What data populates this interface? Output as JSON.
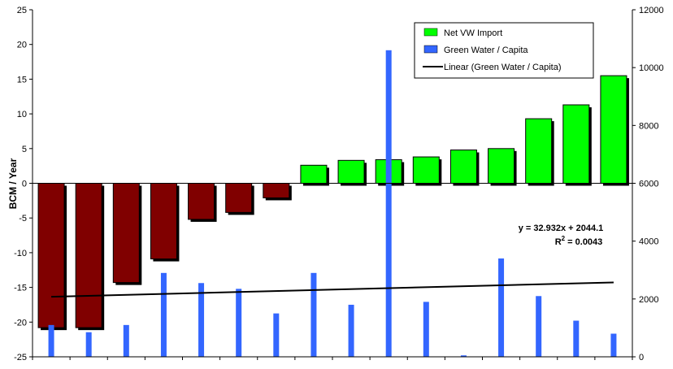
{
  "chart_data": {
    "type": "bar",
    "ylabel": "BCM / Year",
    "y_left_range": [
      -25,
      25
    ],
    "y_left_ticks": [
      25,
      20,
      15,
      10,
      5,
      0,
      -5,
      -10,
      -15,
      -20,
      -25
    ],
    "y_right_range": [
      0,
      12000
    ],
    "y_right_ticks": [
      12000,
      10000,
      8000,
      6000,
      4000,
      2000,
      0
    ],
    "bar_count": 16,
    "series": [
      {
        "name": "Net VW Import",
        "axis": "left",
        "color_negative": "#800000",
        "color_positive": "#00ff00",
        "values": [
          -20.8,
          -20.8,
          -14.3,
          -10.9,
          -5.2,
          -4.2,
          -2.1,
          2.6,
          3.3,
          3.4,
          3.8,
          4.8,
          5.0,
          9.3,
          11.3,
          15.5
        ]
      },
      {
        "name": "Green Water / Capita",
        "axis": "right",
        "color": "#3366ff",
        "values": [
          1100,
          850,
          1100,
          2900,
          2550,
          2350,
          1500,
          2900,
          1800,
          10600,
          1900,
          50,
          3400,
          2100,
          1250,
          800
        ]
      }
    ],
    "trendline": {
      "name": "Linear (Green Water / Capita)",
      "axis": "right",
      "slope": 32.932,
      "intercept": 2044.1,
      "color": "#000000"
    },
    "annotation": {
      "equation": "y = 32.932x + 2044.1",
      "r2_prefix": "R",
      "r2_sup": "2",
      "r2_suffix": " = 0.0043"
    },
    "legend": {
      "placement": "top-right",
      "items": [
        {
          "label": "Net VW Import",
          "kind": "box",
          "color": "#00ff00"
        },
        {
          "label": "Green Water / Capita",
          "kind": "box",
          "color": "#3366ff"
        },
        {
          "label": "Linear (Green Water / Capita)",
          "kind": "line",
          "color": "#000000"
        }
      ]
    },
    "grid": false
  }
}
